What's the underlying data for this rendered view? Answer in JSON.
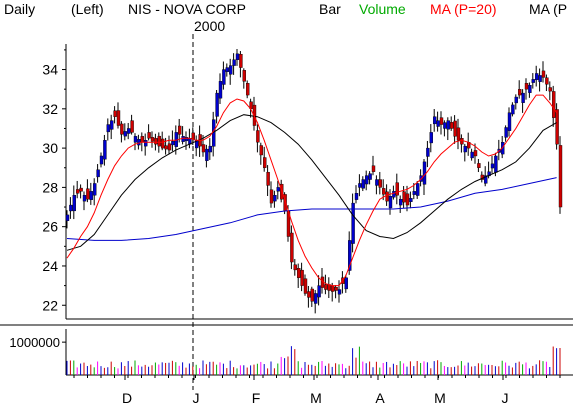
{
  "header": {
    "period": "Daily",
    "scale": "(Left)",
    "title": "NIS - NOVA CORP",
    "type_label": "Bar",
    "volume_label": "Volume",
    "ma20_label": "MA (P=20)",
    "ma_extra_label": "MA (P"
  },
  "colors": {
    "up": "#0000cc",
    "down": "#cc0000",
    "volume_label": "#00aa00",
    "ma20": "#ff0000",
    "ma_mid": "#000000",
    "ma_long": "#0000cc",
    "axis": "#000000"
  },
  "chart_data": {
    "type": "candlestick",
    "year_label": "2000",
    "ylim": [
      21.3,
      35.3
    ],
    "y_ticks": [
      22,
      24,
      26,
      28,
      30,
      32,
      34
    ],
    "months": [
      "D",
      "J",
      "F",
      "M",
      "A",
      "M",
      "J"
    ],
    "volume": {
      "label": "1000000",
      "tick_value": 1000000,
      "ylim": [
        0,
        1400000
      ]
    },
    "price_path": [
      [
        0,
        26.6
      ],
      [
        2,
        27.6
      ],
      [
        4,
        27.8
      ],
      [
        6,
        27.4
      ],
      [
        8,
        28.2
      ],
      [
        10,
        29.6
      ],
      [
        12,
        31.2
      ],
      [
        14,
        31.6
      ],
      [
        16,
        30.7
      ],
      [
        18,
        31.0
      ],
      [
        20,
        30.6
      ],
      [
        22,
        30.3
      ],
      [
        24,
        30.5
      ],
      [
        26,
        30.2
      ],
      [
        28,
        30.0
      ],
      [
        30,
        29.9
      ],
      [
        32,
        30.8
      ],
      [
        34,
        30.6
      ],
      [
        36,
        30.5
      ],
      [
        38,
        30.4
      ],
      [
        40,
        29.8
      ],
      [
        42,
        30.1
      ],
      [
        44,
        32.8
      ],
      [
        46,
        34.0
      ],
      [
        48,
        34.2
      ],
      [
        50,
        34.8
      ],
      [
        52,
        33.4
      ],
      [
        54,
        32.0
      ],
      [
        56,
        30.3
      ],
      [
        58,
        29.0
      ],
      [
        60,
        27.2
      ],
      [
        62,
        28.0
      ],
      [
        64,
        26.8
      ],
      [
        66,
        24.2
      ],
      [
        68,
        23.4
      ],
      [
        70,
        22.6
      ],
      [
        72,
        22.2
      ],
      [
        74,
        23.0
      ],
      [
        76,
        22.8
      ],
      [
        78,
        22.7
      ],
      [
        80,
        22.8
      ],
      [
        82,
        23.4
      ],
      [
        84,
        27.2
      ],
      [
        86,
        28.2
      ],
      [
        88,
        28.6
      ],
      [
        90,
        28.8
      ],
      [
        92,
        28.0
      ],
      [
        94,
        27.3
      ],
      [
        96,
        27.8
      ],
      [
        98,
        27.4
      ],
      [
        100,
        27.1
      ],
      [
        102,
        27.8
      ],
      [
        104,
        28.6
      ],
      [
        106,
        30.0
      ],
      [
        108,
        31.6
      ],
      [
        110,
        31.2
      ],
      [
        112,
        31.4
      ],
      [
        114,
        30.6
      ],
      [
        116,
        30.2
      ],
      [
        118,
        30.0
      ],
      [
        120,
        29.6
      ],
      [
        122,
        28.4
      ],
      [
        124,
        28.8
      ],
      [
        126,
        29.6
      ],
      [
        128,
        30.3
      ],
      [
        130,
        31.8
      ],
      [
        132,
        32.6
      ],
      [
        134,
        32.8
      ],
      [
        136,
        33.2
      ],
      [
        138,
        33.8
      ],
      [
        140,
        33.6
      ],
      [
        142,
        32.9
      ],
      [
        144,
        30.2
      ],
      [
        145,
        27.0
      ]
    ],
    "ma20_path": [
      [
        0,
        24.4
      ],
      [
        2,
        24.9
      ],
      [
        4,
        25.5
      ],
      [
        6,
        26.0
      ],
      [
        8,
        26.7
      ],
      [
        10,
        27.6
      ],
      [
        12,
        28.4
      ],
      [
        14,
        29.1
      ],
      [
        16,
        29.6
      ],
      [
        18,
        30.0
      ],
      [
        20,
        30.2
      ],
      [
        22,
        30.3
      ],
      [
        24,
        30.3
      ],
      [
        26,
        30.3
      ],
      [
        28,
        30.3
      ],
      [
        30,
        30.4
      ],
      [
        32,
        30.4
      ],
      [
        34,
        30.5
      ],
      [
        36,
        30.5
      ],
      [
        38,
        30.4
      ],
      [
        40,
        30.4
      ],
      [
        42,
        30.6
      ],
      [
        44,
        31.1
      ],
      [
        46,
        31.8
      ],
      [
        48,
        32.3
      ],
      [
        50,
        32.5
      ],
      [
        52,
        32.4
      ],
      [
        54,
        32.0
      ],
      [
        56,
        31.3
      ],
      [
        58,
        30.4
      ],
      [
        60,
        29.4
      ],
      [
        62,
        28.4
      ],
      [
        64,
        27.4
      ],
      [
        66,
        26.3
      ],
      [
        68,
        25.3
      ],
      [
        70,
        24.5
      ],
      [
        72,
        23.9
      ],
      [
        74,
        23.4
      ],
      [
        76,
        23.1
      ],
      [
        78,
        23.0
      ],
      [
        80,
        23.0
      ],
      [
        82,
        23.5
      ],
      [
        84,
        24.4
      ],
      [
        86,
        25.3
      ],
      [
        88,
        26.1
      ],
      [
        90,
        26.8
      ],
      [
        92,
        27.4
      ],
      [
        94,
        27.6
      ],
      [
        96,
        27.7
      ],
      [
        98,
        27.8
      ],
      [
        100,
        27.9
      ],
      [
        102,
        28.1
      ],
      [
        104,
        28.4
      ],
      [
        106,
        28.8
      ],
      [
        108,
        29.3
      ],
      [
        110,
        29.7
      ],
      [
        112,
        30.0
      ],
      [
        114,
        30.3
      ],
      [
        116,
        30.4
      ],
      [
        118,
        30.3
      ],
      [
        120,
        30.1
      ],
      [
        122,
        29.8
      ],
      [
        124,
        29.6
      ],
      [
        126,
        29.7
      ],
      [
        128,
        30.0
      ],
      [
        130,
        30.5
      ],
      [
        132,
        31.0
      ],
      [
        134,
        31.6
      ],
      [
        136,
        32.2
      ],
      [
        138,
        32.7
      ],
      [
        140,
        32.7
      ],
      [
        142,
        32.3
      ],
      [
        144,
        31.8
      ]
    ],
    "ma_mid_path": [
      [
        0,
        24.8
      ],
      [
        4,
        25.0
      ],
      [
        8,
        25.6
      ],
      [
        12,
        26.6
      ],
      [
        16,
        27.6
      ],
      [
        20,
        28.4
      ],
      [
        24,
        29.0
      ],
      [
        28,
        29.5
      ],
      [
        32,
        29.9
      ],
      [
        36,
        30.2
      ],
      [
        40,
        30.5
      ],
      [
        44,
        30.9
      ],
      [
        48,
        31.4
      ],
      [
        52,
        31.7
      ],
      [
        56,
        31.6
      ],
      [
        60,
        31.3
      ],
      [
        64,
        30.8
      ],
      [
        68,
        30.2
      ],
      [
        72,
        29.4
      ],
      [
        76,
        28.5
      ],
      [
        80,
        27.6
      ],
      [
        84,
        26.6
      ],
      [
        88,
        25.8
      ],
      [
        92,
        25.5
      ],
      [
        96,
        25.4
      ],
      [
        100,
        25.7
      ],
      [
        104,
        26.2
      ],
      [
        108,
        26.8
      ],
      [
        112,
        27.4
      ],
      [
        116,
        27.9
      ],
      [
        120,
        28.3
      ],
      [
        124,
        28.6
      ],
      [
        128,
        28.9
      ],
      [
        132,
        29.3
      ],
      [
        136,
        30.0
      ],
      [
        140,
        30.9
      ],
      [
        144,
        31.3
      ]
    ],
    "ma_long_path": [
      [
        0,
        25.4
      ],
      [
        8,
        25.3
      ],
      [
        16,
        25.3
      ],
      [
        24,
        25.4
      ],
      [
        32,
        25.6
      ],
      [
        40,
        25.9
      ],
      [
        48,
        26.2
      ],
      [
        56,
        26.6
      ],
      [
        64,
        26.8
      ],
      [
        72,
        26.9
      ],
      [
        80,
        26.9
      ],
      [
        88,
        26.9
      ],
      [
        96,
        26.9
      ],
      [
        104,
        27.0
      ],
      [
        112,
        27.3
      ],
      [
        120,
        27.7
      ],
      [
        128,
        27.9
      ],
      [
        136,
        28.2
      ],
      [
        144,
        28.5
      ]
    ]
  }
}
